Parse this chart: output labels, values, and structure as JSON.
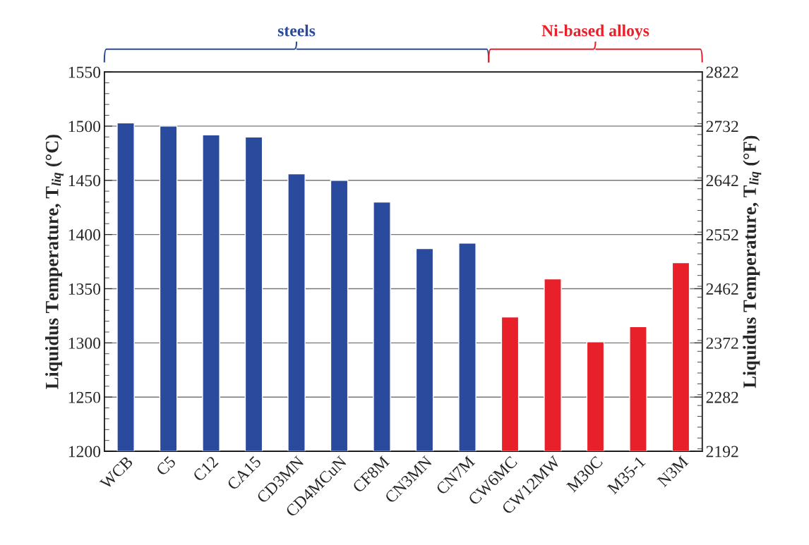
{
  "chart_data": {
    "type": "bar",
    "categories": [
      "WCB",
      "C5",
      "C12",
      "CA15",
      "CD3MN",
      "CD4MCuN",
      "CF8M",
      "CN3MN",
      "CN7M",
      "CW6MC",
      "CW12MW",
      "M30C",
      "M35-1",
      "N3M"
    ],
    "series": [
      {
        "name": "steels",
        "color": "#2a4a9e",
        "values": [
          1503,
          1500,
          1492,
          1490,
          1456,
          1450,
          1430,
          1387,
          1392,
          null,
          null,
          null,
          null,
          null
        ]
      },
      {
        "name": "Ni-based alloys",
        "color": "#e8202a",
        "values": [
          null,
          null,
          null,
          null,
          null,
          null,
          null,
          null,
          null,
          1324,
          1359,
          1301,
          1315,
          1374
        ]
      }
    ],
    "ylabel": "Liquidus Temperature, T$_{liq}$ (°C)",
    "y2label": "Liquidus Temperature, T$_{liq}$ (°F)",
    "ylim": [
      1200,
      1550
    ],
    "yticks": [
      1200,
      1250,
      1300,
      1350,
      1400,
      1450,
      1500,
      1550
    ],
    "y2lim": [
      2192,
      2822
    ],
    "y2ticks": [
      2192,
      2282,
      2372,
      2462,
      2552,
      2642,
      2732,
      2822
    ],
    "grid": "y",
    "legend": false
  }
}
